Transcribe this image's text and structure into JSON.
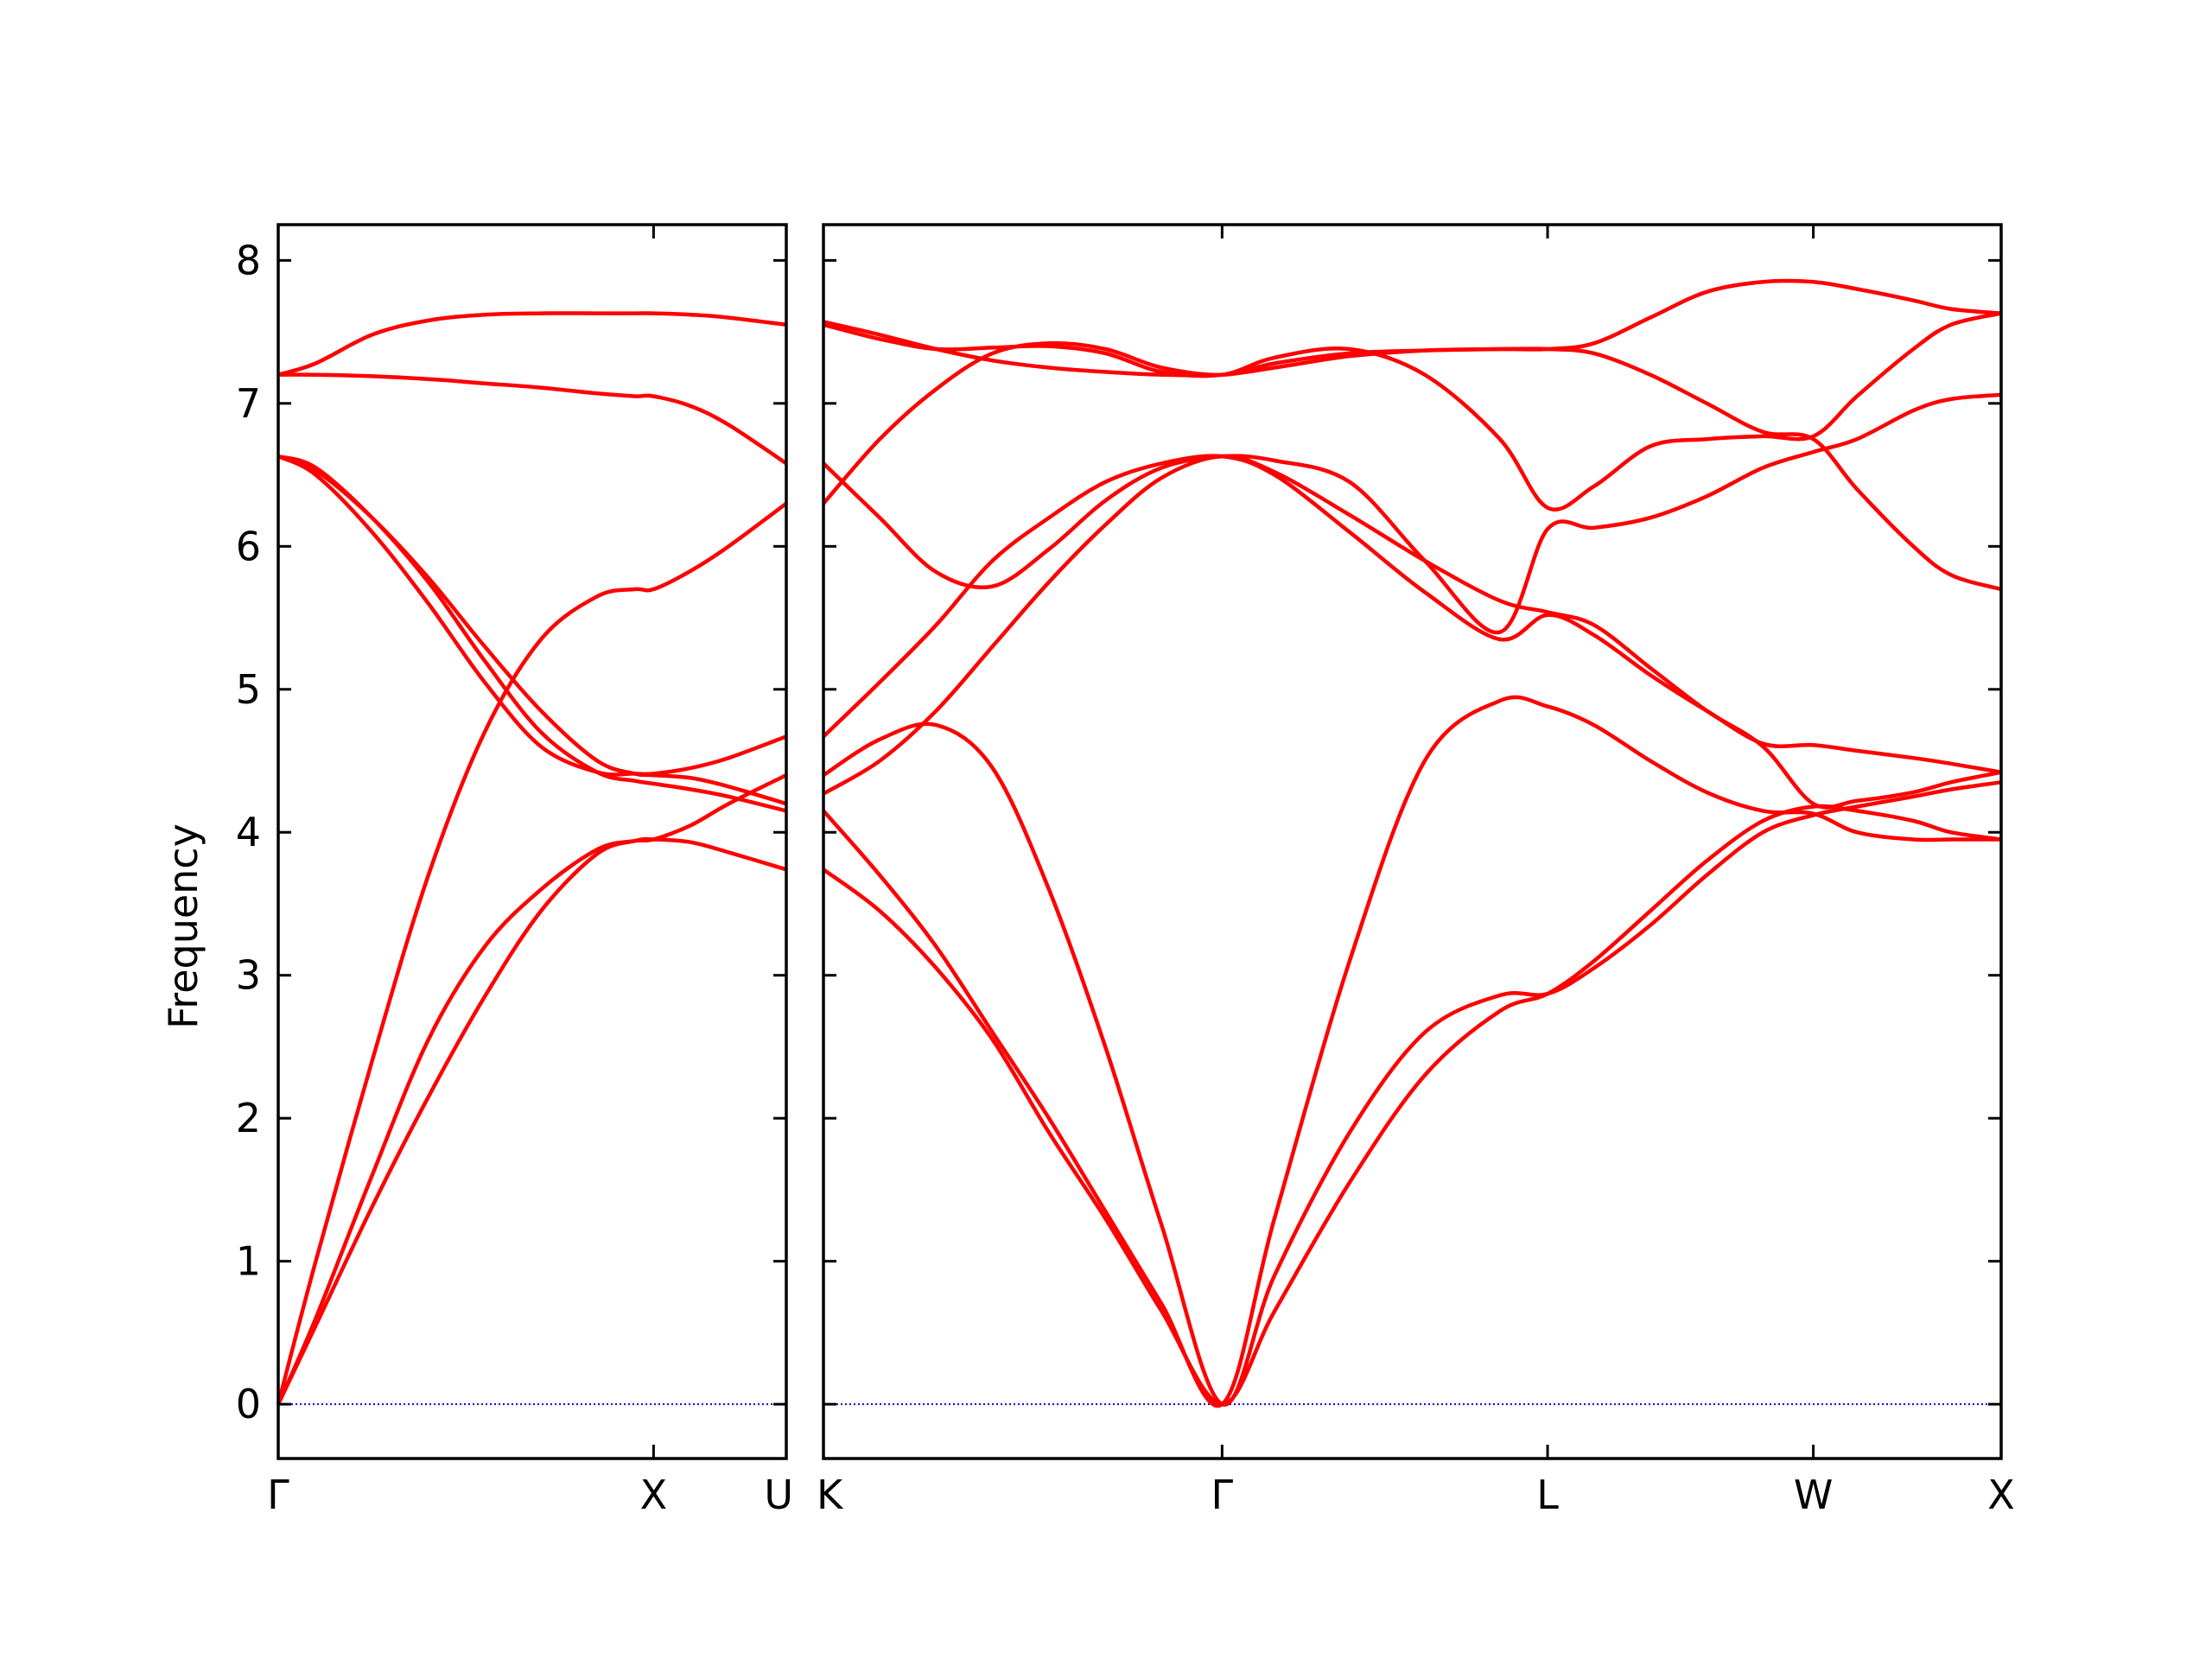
{
  "chart_data": {
    "type": "line",
    "ylabel": "Frequency",
    "ylim": [
      -0.38,
      8.25
    ],
    "yticks": [
      0,
      1,
      2,
      3,
      4,
      5,
      6,
      7,
      8
    ],
    "grid": false,
    "legend": "none",
    "colors": {
      "band": "#ff0000",
      "zero_line": "#0000ff",
      "axes": "#000000"
    },
    "panels": [
      {
        "id": "left",
        "xlim": [
          0,
          1.3536
        ],
        "ticks": [
          {
            "x": 0.0,
            "label": "Γ"
          },
          {
            "x": 1.0,
            "label": "X"
          },
          {
            "x": 1.3536,
            "label": "U"
          }
        ],
        "series": [
          {
            "x": [
              0,
              0.1,
              0.25,
              0.4,
              0.55,
              0.7,
              0.85,
              0.95,
              1.0,
              1.1,
              1.2,
              1.3536
            ],
            "y": [
              0,
              0.55,
              1.38,
              2.15,
              2.85,
              3.45,
              3.85,
              3.94,
              3.95,
              3.93,
              3.86,
              3.74
            ]
          },
          {
            "x": [
              0,
              0.1,
              0.25,
              0.4,
              0.55,
              0.7,
              0.85,
              0.95,
              1.0,
              1.1,
              1.2,
              1.3536
            ],
            "y": [
              0,
              1.0,
              2.4,
              3.7,
              4.7,
              5.35,
              5.65,
              5.7,
              5.7,
              5.83,
              6.0,
              6.3
            ]
          },
          {
            "x": [
              0,
              0.1,
              0.25,
              0.4,
              0.55,
              0.7,
              0.85,
              0.95,
              1.0,
              1.1,
              1.2,
              1.3536
            ],
            "y": [
              6.63,
              6.55,
              6.2,
              5.75,
              5.2,
              4.7,
              4.42,
              4.36,
              4.34,
              4.3,
              4.25,
              4.15
            ]
          },
          {
            "x": [
              0,
              0.1,
              0.25,
              0.4,
              0.55,
              0.7,
              0.85,
              0.95,
              1.0,
              1.1,
              1.2,
              1.3536
            ],
            "y": [
              6.63,
              6.53,
              6.2,
              5.78,
              5.3,
              4.85,
              4.5,
              4.41,
              4.4,
              4.38,
              4.32,
              4.2
            ]
          },
          {
            "x": [
              0,
              0.1,
              0.25,
              0.4,
              0.55,
              0.7,
              0.85,
              0.95,
              1.0,
              1.1,
              1.2,
              1.3536
            ],
            "y": [
              0,
              0.6,
              1.6,
              2.55,
              3.2,
              3.6,
              3.88,
              3.94,
              3.95,
              4.05,
              4.2,
              4.4
            ]
          },
          {
            "x": [
              0,
              0.1,
              0.25,
              0.4,
              0.55,
              0.7,
              0.85,
              0.95,
              1.0,
              1.1,
              1.2,
              1.3536
            ],
            "y": [
              6.63,
              6.5,
              6.1,
              5.6,
              5.05,
              4.6,
              4.42,
              4.41,
              4.41,
              4.45,
              4.52,
              4.67
            ]
          },
          {
            "x": [
              0,
              0.1,
              0.25,
              0.4,
              0.55,
              0.7,
              0.85,
              0.95,
              1.0,
              1.1,
              1.2,
              1.3536
            ],
            "y": [
              7.2,
              7.2,
              7.19,
              7.17,
              7.14,
              7.11,
              7.07,
              7.05,
              7.05,
              6.98,
              6.85,
              6.58
            ]
          },
          {
            "x": [
              0,
              0.1,
              0.25,
              0.4,
              0.55,
              0.7,
              0.85,
              0.95,
              1.0,
              1.1,
              1.2,
              1.3536
            ],
            "y": [
              7.2,
              7.28,
              7.48,
              7.58,
              7.62,
              7.63,
              7.63,
              7.63,
              7.63,
              7.62,
              7.6,
              7.55
            ]
          }
        ]
      },
      {
        "id": "right",
        "xlim": [
          0,
          3.1336
        ],
        "ticks": [
          {
            "x": 0.0,
            "label": "K"
          },
          {
            "x": 1.0607,
            "label": "Γ"
          },
          {
            "x": 1.9267,
            "label": "L"
          },
          {
            "x": 2.6338,
            "label": "W"
          },
          {
            "x": 3.1336,
            "label": "X"
          }
        ],
        "series": [
          {
            "x": [
              0,
              0.15,
              0.3,
              0.45,
              0.6,
              0.75,
              0.9,
              1.0607,
              1.2,
              1.4,
              1.6,
              1.8,
              1.9267,
              2.05,
              2.2,
              2.35,
              2.5,
              2.6338,
              2.75,
              2.9,
              3.0,
              3.1336
            ],
            "y": [
              3.74,
              3.45,
              3.05,
              2.55,
              1.9,
              1.3,
              0.65,
              0,
              0.65,
              1.55,
              2.3,
              2.75,
              2.87,
              3.1,
              3.45,
              3.8,
              4.08,
              4.18,
              4.15,
              4.08,
              4.0,
              3.95
            ]
          },
          {
            "x": [
              0,
              0.15,
              0.3,
              0.45,
              0.6,
              0.75,
              0.9,
              1.0607,
              1.2,
              1.4,
              1.6,
              1.8,
              1.9267,
              2.05,
              2.2,
              2.35,
              2.5,
              2.6338,
              2.75,
              2.9,
              3.0,
              3.1336
            ],
            "y": [
              4.15,
              3.7,
              3.2,
              2.6,
              2.0,
              1.35,
              0.7,
              0,
              1.3,
              3.1,
              4.5,
              4.92,
              4.88,
              4.75,
              4.5,
              4.28,
              4.15,
              4.13,
              4.0,
              3.95,
              3.95,
              3.95
            ]
          },
          {
            "x": [
              0,
              0.15,
              0.3,
              0.45,
              0.6,
              0.75,
              0.9,
              1.0607,
              1.2,
              1.4,
              1.6,
              1.8,
              1.9267,
              2.05,
              2.2,
              2.35,
              2.5,
              2.6338,
              2.75,
              2.9,
              3.0,
              3.1336
            ],
            "y": [
              4.4,
              4.65,
              4.75,
              4.45,
              3.6,
              2.5,
              1.25,
              0,
              0.9,
              1.9,
              2.6,
              2.86,
              2.87,
              3.05,
              3.35,
              3.7,
              4.0,
              4.12,
              4.18,
              4.25,
              4.3,
              4.35
            ]
          },
          {
            "x": [
              0,
              0.15,
              0.3,
              0.45,
              0.6,
              0.75,
              0.9,
              1.0607,
              1.2,
              1.4,
              1.6,
              1.8,
              1.9267,
              2.05,
              2.2,
              2.35,
              2.5,
              2.6338,
              2.75,
              2.9,
              3.0,
              3.1336
            ],
            "y": [
              4.27,
              4.5,
              4.85,
              5.3,
              5.75,
              6.15,
              6.48,
              6.63,
              6.52,
              6.22,
              5.9,
              5.62,
              5.54,
              5.45,
              5.15,
              4.85,
              4.6,
              4.2,
              4.22,
              4.28,
              4.35,
              4.42
            ]
          },
          {
            "x": [
              0,
              0.15,
              0.3,
              0.45,
              0.6,
              0.75,
              0.9,
              1.0607,
              1.2,
              1.4,
              1.6,
              1.8,
              1.9267,
              2.05,
              2.2,
              2.35,
              2.5,
              2.6338,
              2.75,
              2.9,
              3.0,
              3.1336
            ],
            "y": [
              4.67,
              5.05,
              5.45,
              5.9,
              6.2,
              6.45,
              6.58,
              6.63,
              6.5,
              6.1,
              5.68,
              5.35,
              5.52,
              5.38,
              5.1,
              4.85,
              4.62,
              4.61,
              4.57,
              4.52,
              4.48,
              4.42
            ]
          },
          {
            "x": [
              0,
              0.15,
              0.3,
              0.45,
              0.6,
              0.75,
              0.9,
              1.0607,
              1.2,
              1.4,
              1.6,
              1.8,
              1.9267,
              2.05,
              2.2,
              2.35,
              2.5,
              2.6338,
              2.75,
              2.9,
              3.0,
              3.1336
            ],
            "y": [
              6.58,
              6.2,
              5.82,
              5.72,
              5.98,
              6.32,
              6.55,
              6.63,
              6.6,
              6.45,
              5.9,
              5.4,
              6.12,
              6.13,
              6.2,
              6.35,
              6.55,
              6.66,
              6.75,
              6.95,
              7.03,
              7.06
            ]
          },
          {
            "x": [
              0,
              0.15,
              0.3,
              0.45,
              0.6,
              0.75,
              0.9,
              1.0607,
              1.2,
              1.4,
              1.6,
              1.8,
              1.9267,
              2.05,
              2.2,
              2.35,
              2.5,
              2.6338,
              2.75,
              2.9,
              3.0,
              3.1336
            ],
            "y": [
              6.3,
              6.75,
              7.1,
              7.35,
              7.42,
              7.38,
              7.25,
              7.2,
              7.28,
              7.35,
              7.37,
              7.38,
              7.38,
              7.35,
              7.2,
              7.0,
              6.8,
              6.75,
              6.4,
              6.0,
              5.8,
              5.7
            ]
          },
          {
            "x": [
              0,
              0.15,
              0.3,
              0.45,
              0.6,
              0.75,
              0.9,
              1.0607,
              1.2,
              1.4,
              1.6,
              1.8,
              1.9267,
              2.05,
              2.2,
              2.35,
              2.5,
              2.6338,
              2.75,
              2.9,
              3.0,
              3.1336
            ],
            "y": [
              7.55,
              7.45,
              7.38,
              7.39,
              7.4,
              7.35,
              7.22,
              7.2,
              7.32,
              7.38,
              7.2,
              6.75,
              6.27,
              6.42,
              6.7,
              6.75,
              6.77,
              6.77,
              7.05,
              7.38,
              7.55,
              7.63
            ]
          },
          {
            "x": [
              0,
              0.15,
              0.3,
              0.45,
              0.6,
              0.75,
              0.9,
              1.0607,
              1.2,
              1.4,
              1.6,
              1.8,
              1.9267,
              2.05,
              2.2,
              2.35,
              2.5,
              2.6338,
              2.75,
              2.9,
              3.0,
              3.1336
            ],
            "y": [
              7.57,
              7.48,
              7.38,
              7.3,
              7.25,
              7.22,
              7.2,
              7.2,
              7.25,
              7.33,
              7.37,
              7.38,
              7.38,
              7.42,
              7.6,
              7.78,
              7.85,
              7.85,
              7.8,
              7.72,
              7.66,
              7.63
            ]
          }
        ]
      }
    ]
  }
}
